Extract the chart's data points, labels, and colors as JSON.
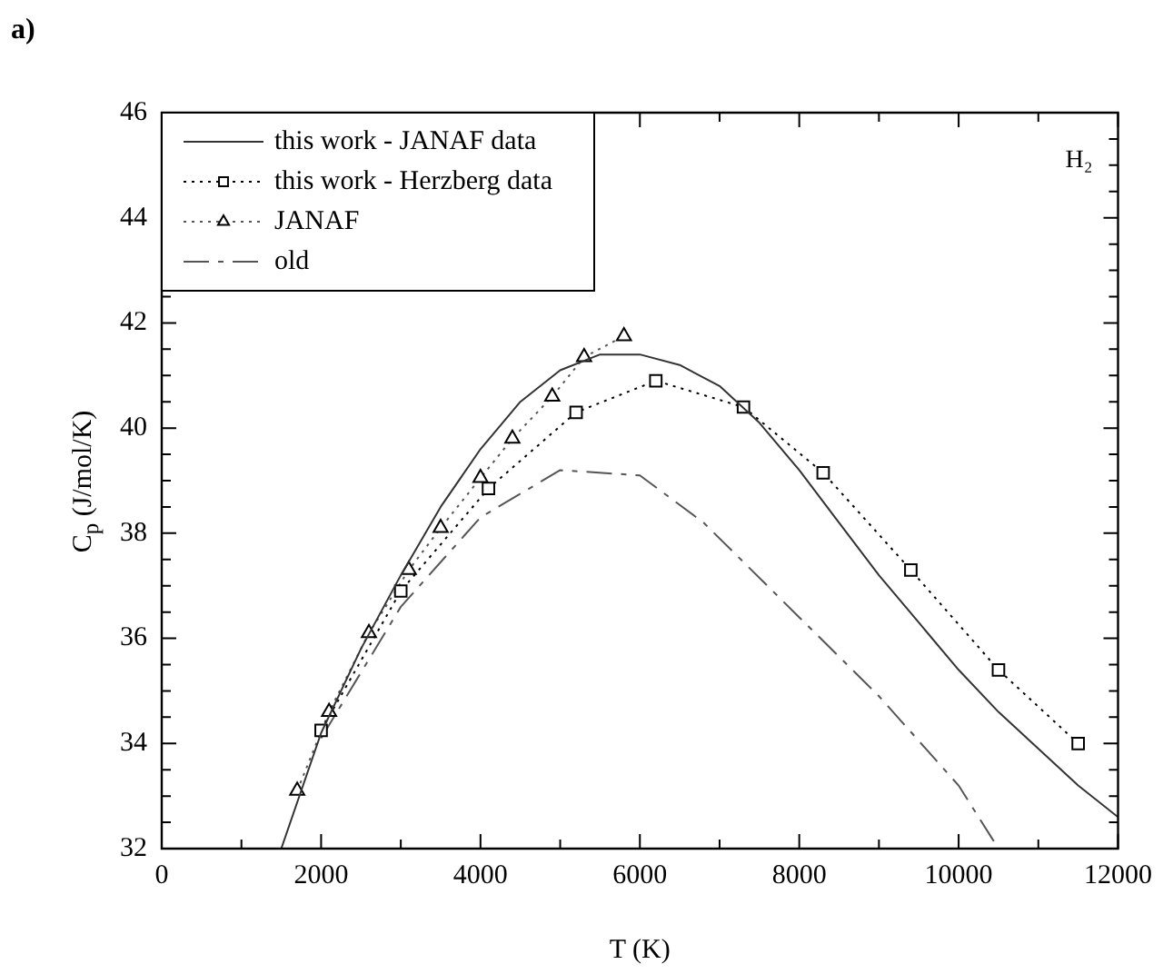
{
  "chart_data": {
    "type": "line",
    "xlabel": "T (K)",
    "ylabel": "C$_{p}$ (J/mol/K)",
    "annotations": [
      "a)",
      "H₂"
    ],
    "xlim": [
      0,
      12000
    ],
    "ylim": [
      32,
      46
    ],
    "xticks": [
      0,
      {
        "value": 1000,
        "label": null
      },
      2000,
      {
        "value": 3000,
        "label": null
      },
      4000,
      {
        "value": 5000,
        "label": null
      },
      6000,
      {
        "value": 7000,
        "label": null
      },
      8000,
      {
        "value": 9000,
        "label": null
      },
      10000,
      {
        "value": 11000,
        "label": null
      },
      12000
    ],
    "yticks": [
      32,
      {
        "value": 32.5,
        "label": null
      },
      {
        "value": 33,
        "label": null
      },
      {
        "value": 33.5,
        "label": null
      },
      34,
      {
        "value": 34.5,
        "label": null
      },
      {
        "value": 35,
        "label": null
      },
      {
        "value": 35.5,
        "label": null
      },
      36,
      {
        "value": 36.5,
        "label": null
      },
      {
        "value": 37,
        "label": null
      },
      {
        "value": 37.5,
        "label": null
      },
      38,
      {
        "value": 38.5,
        "label": null
      },
      {
        "value": 39,
        "label": null
      },
      {
        "value": 39.5,
        "label": null
      },
      40,
      {
        "value": 40.5,
        "label": null
      },
      {
        "value": 41,
        "label": null
      },
      {
        "value": 41.5,
        "label": null
      },
      42,
      {
        "value": 42.5,
        "label": null
      },
      {
        "value": 43,
        "label": null
      },
      {
        "value": 43.5,
        "label": null
      },
      44,
      {
        "value": 44.5,
        "label": null
      },
      {
        "value": 45,
        "label": null
      },
      {
        "value": 45.5,
        "label": null
      },
      46
    ],
    "grid": false,
    "legend": "top left",
    "series": [
      {
        "name": "this work - JANAF data",
        "color": "#333333",
        "marker": "none",
        "line_style": "solid",
        "x": [
          1500,
          2000,
          2500,
          3000,
          3500,
          4000,
          4500,
          5000,
          5500,
          6000,
          6500,
          7000,
          7500,
          8000,
          8500,
          9000,
          9500,
          10000,
          10500,
          11000,
          11500,
          12000
        ],
        "values": [
          32,
          34.2,
          35.8,
          37.2,
          38.5,
          39.6,
          40.5,
          41.1,
          41.4,
          41.4,
          41.2,
          40.8,
          40.1,
          39.2,
          38.2,
          37.2,
          36.3,
          35.4,
          34.6,
          33.9,
          33.2,
          32.6
        ]
      },
      {
        "name": "this work - Herzberg data",
        "color": "#000000",
        "marker": "square",
        "line_style": "dotted",
        "x": [
          2000,
          3000,
          4100,
          5200,
          6200,
          7300,
          8300,
          9400,
          10500,
          11500
        ],
        "values": [
          34.25,
          36.9,
          38.85,
          40.3,
          40.9,
          40.4,
          39.15,
          37.3,
          35.4,
          34.0
        ]
      },
      {
        "name": "JANAF",
        "color": "#555555",
        "marker": "triangle",
        "line_style": "dotted",
        "x": [
          1700,
          2100,
          2600,
          3100,
          3500,
          4000,
          4400,
          4900,
          5300,
          5800
        ],
        "values": [
          33.1,
          34.6,
          36.1,
          37.3,
          38.1,
          39.05,
          39.8,
          40.6,
          41.35,
          41.75
        ]
      },
      {
        "name": "old",
        "color": "#555555",
        "marker": "none",
        "line_style": "dashed",
        "x": [
          2000,
          3000,
          4000,
          5000,
          6000,
          6800,
          8000,
          9000,
          10000,
          10500
        ],
        "values": [
          34.1,
          36.6,
          38.3,
          39.2,
          39.1,
          38.2,
          36.4,
          34.9,
          33.2,
          32.0
        ]
      }
    ]
  }
}
